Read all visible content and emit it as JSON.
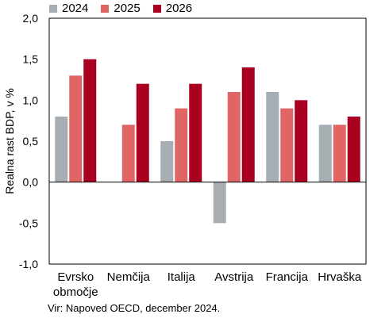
{
  "chart_data": {
    "type": "bar",
    "ylabel": "Realna rast BDP, v %",
    "ylim": [
      -1.0,
      2.0
    ],
    "yticks": [
      "-1,0",
      "-0,5",
      "0,0",
      "0,5",
      "1,0",
      "1,5",
      "2,0"
    ],
    "ytick_values": [
      -1.0,
      -0.5,
      0.0,
      0.5,
      1.0,
      1.5,
      2.0
    ],
    "categories": [
      [
        "Evrsko",
        "območje"
      ],
      [
        "Nemčija"
      ],
      [
        "Italija"
      ],
      [
        "Avstrija"
      ],
      [
        "Francija"
      ],
      [
        "Hrvaška"
      ]
    ],
    "legend_position": "top",
    "series": [
      {
        "name": "2024",
        "color": "#a6adb3",
        "values": [
          0.8,
          null,
          0.5,
          -0.5,
          1.1,
          0.7
        ]
      },
      {
        "name": "2025",
        "color": "#e06666",
        "values": [
          1.3,
          0.7,
          0.9,
          1.1,
          0.9,
          0.7
        ]
      },
      {
        "name": "2026",
        "color": "#a8001e",
        "values": [
          1.5,
          1.2,
          1.2,
          1.4,
          1.0,
          0.8
        ]
      }
    ]
  },
  "source": "Vir: Napoved OECD, december 2024."
}
